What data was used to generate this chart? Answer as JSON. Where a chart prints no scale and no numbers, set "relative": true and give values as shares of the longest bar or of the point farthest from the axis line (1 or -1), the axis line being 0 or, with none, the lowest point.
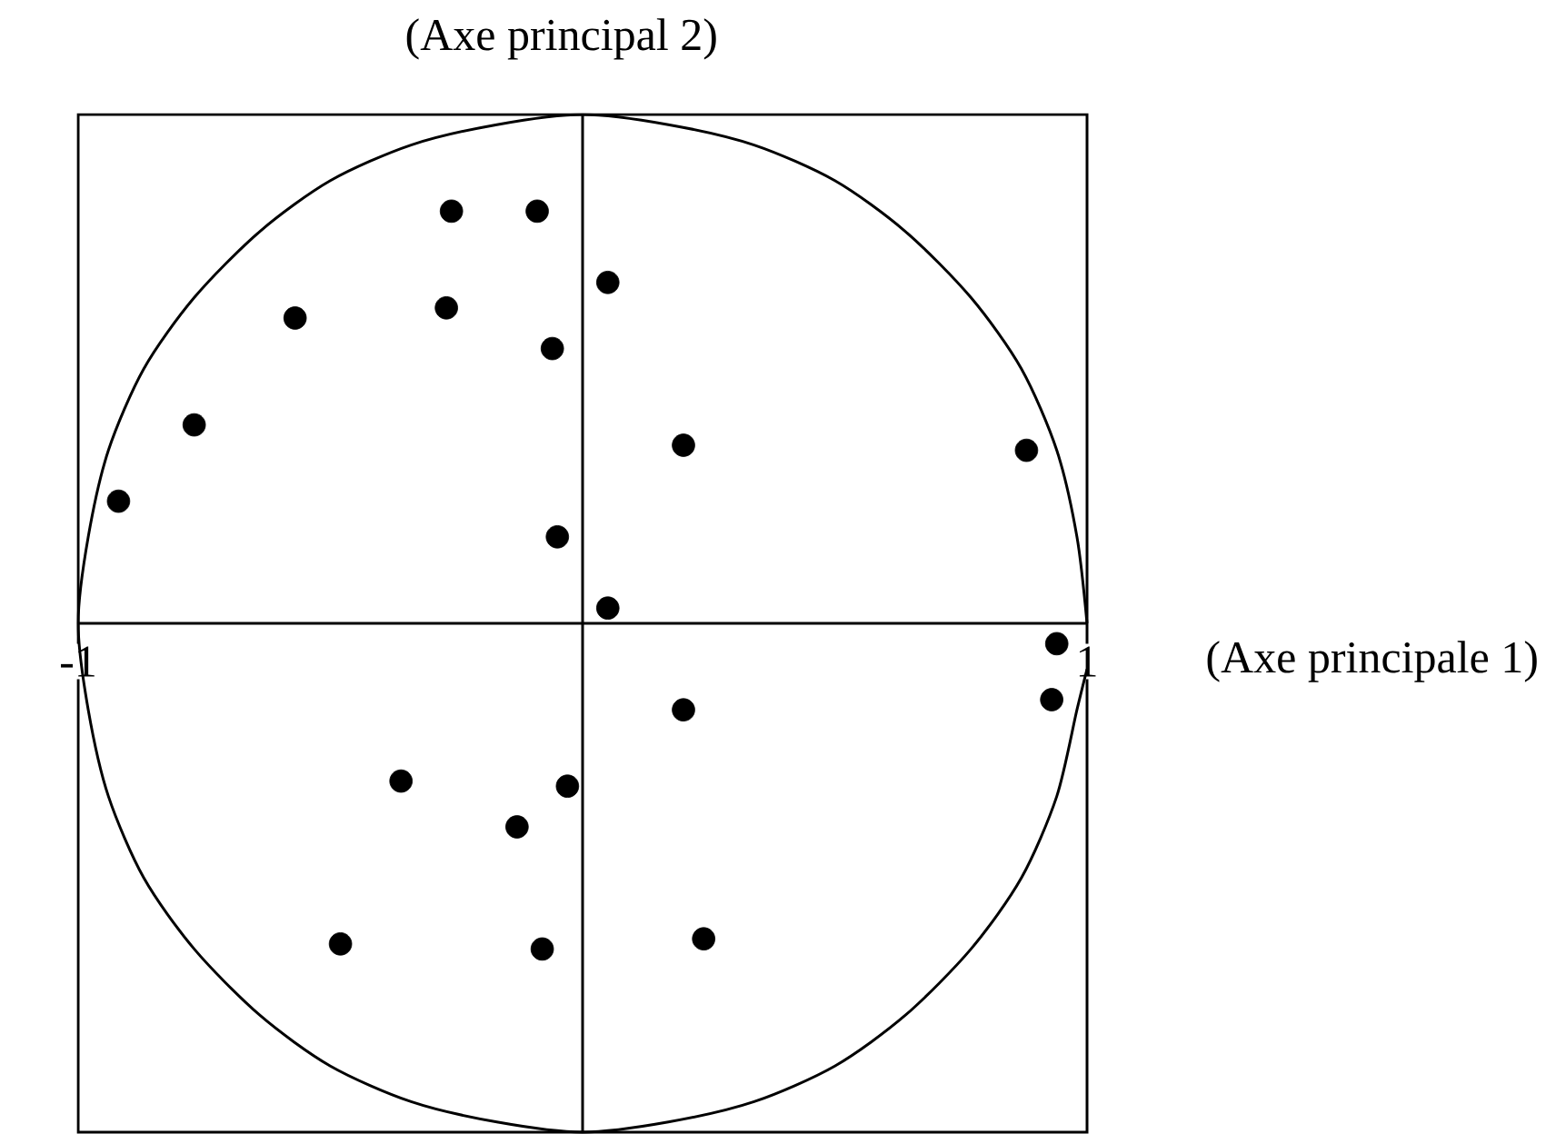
{
  "chart_data": {
    "type": "scatter",
    "xlabel": "(Axe principale 1)",
    "ylabel": "(Axe principal 2)",
    "xlim": [
      -1,
      1
    ],
    "xticks": [
      -1,
      1
    ],
    "tick_labels": "x",
    "marker": "circle",
    "relative": true,
    "ref_lines": [
      {
        "axis": "x",
        "value": 0,
        "color": "#000000"
      }
    ],
    "series": [
      {
        "type": "line",
        "color": "#000000",
        "marker": "none",
        "x": [
          1,
          0.98,
          0.94,
          0.87,
          0.77,
          0.64,
          0.5,
          0.34,
          0.17,
          0,
          -0.17,
          -0.34,
          -0.5,
          -0.64,
          -0.77,
          -0.87,
          -0.94,
          -0.98,
          -1,
          -0.98,
          -0.94,
          -0.87,
          -0.77,
          -0.64,
          -0.5,
          -0.34,
          -0.17,
          0,
          0.17,
          0.34,
          0.5,
          0.64,
          0.77,
          0.87,
          0.94,
          0.98,
          1
        ],
        "values": [
          0,
          0.17,
          0.34,
          0.5,
          0.64,
          0.77,
          0.87,
          0.94,
          0.98,
          1,
          0.98,
          0.94,
          0.87,
          0.77,
          0.64,
          0.5,
          0.34,
          0.17,
          0,
          -0.17,
          -0.34,
          -0.5,
          -0.64,
          -0.77,
          -0.87,
          -0.94,
          -0.98,
          -1,
          -0.98,
          -0.94,
          -0.87,
          -0.77,
          -0.64,
          -0.5,
          -0.34,
          -0.17,
          -0.09
        ]
      },
      {
        "color": "#000000",
        "x": [
          -0.26,
          -0.09,
          0.05,
          -0.57,
          -0.27,
          -0.06,
          -0.77,
          0.2,
          0.88,
          -0.92,
          -0.05,
          0.05,
          0.94,
          0.93,
          0.2,
          -0.36,
          -0.03,
          -0.13,
          -0.48,
          -0.08,
          0.24
        ],
        "values": [
          0.81,
          0.81,
          0.67,
          0.6,
          0.62,
          0.54,
          0.39,
          0.35,
          0.34,
          0.24,
          0.17,
          0.03,
          -0.04,
          -0.15,
          -0.17,
          -0.31,
          -0.32,
          -0.4,
          -0.63,
          -0.64,
          -0.62
        ]
      }
    ]
  }
}
